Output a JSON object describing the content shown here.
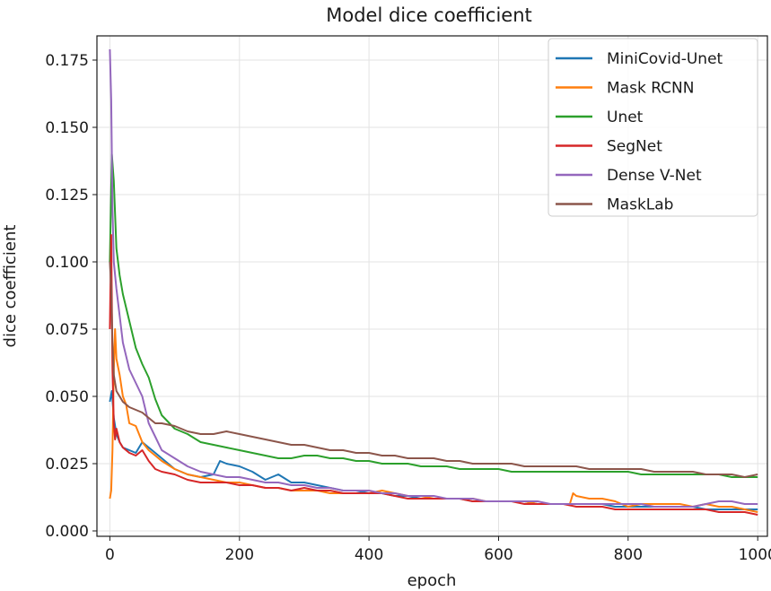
{
  "chart_data": {
    "type": "line",
    "title": "Model dice coefficient",
    "xlabel": "epoch",
    "ylabel": "dice coefficient",
    "xlim": [
      -20,
      1015
    ],
    "ylim": [
      -0.002,
      0.184
    ],
    "x_ticks": [
      0,
      200,
      400,
      600,
      800,
      1000
    ],
    "x_tick_labels": [
      "0",
      "200",
      "400",
      "600",
      "800",
      "1000"
    ],
    "y_ticks": [
      0.0,
      0.025,
      0.05,
      0.075,
      0.1,
      0.125,
      0.15,
      0.175
    ],
    "y_tick_labels": [
      "0.000",
      "0.025",
      "0.050",
      "0.075",
      "0.100",
      "0.125",
      "0.150",
      "0.175"
    ],
    "grid": true,
    "legend_position": "top-right",
    "series": [
      {
        "name": "MiniCovid-Unet",
        "color": "#1f77b4",
        "x": [
          0,
          3,
          6,
          10,
          15,
          20,
          30,
          40,
          50,
          60,
          70,
          80,
          100,
          120,
          140,
          160,
          170,
          180,
          200,
          220,
          240,
          260,
          280,
          300,
          320,
          340,
          360,
          380,
          400,
          420,
          440,
          460,
          480,
          500,
          520,
          540,
          560,
          580,
          600,
          620,
          640,
          660,
          680,
          700,
          720,
          740,
          760,
          780,
          800,
          820,
          840,
          860,
          880,
          900,
          920,
          940,
          960,
          980,
          1000
        ],
        "y": [
          0.048,
          0.052,
          0.042,
          0.036,
          0.033,
          0.031,
          0.03,
          0.029,
          0.033,
          0.031,
          0.029,
          0.027,
          0.023,
          0.021,
          0.02,
          0.021,
          0.026,
          0.025,
          0.024,
          0.022,
          0.019,
          0.021,
          0.018,
          0.018,
          0.017,
          0.016,
          0.015,
          0.015,
          0.014,
          0.014,
          0.013,
          0.013,
          0.012,
          0.012,
          0.012,
          0.012,
          0.011,
          0.011,
          0.011,
          0.011,
          0.011,
          0.01,
          0.01,
          0.01,
          0.01,
          0.01,
          0.01,
          0.009,
          0.009,
          0.009,
          0.009,
          0.009,
          0.009,
          0.009,
          0.008,
          0.008,
          0.008,
          0.008,
          0.008
        ]
      },
      {
        "name": "Mask RCNN",
        "color": "#ff7f0e",
        "x": [
          0,
          2,
          4,
          6,
          8,
          10,
          15,
          20,
          25,
          30,
          40,
          50,
          60,
          70,
          80,
          100,
          120,
          140,
          160,
          180,
          200,
          220,
          240,
          260,
          280,
          300,
          320,
          340,
          360,
          380,
          400,
          420,
          440,
          460,
          480,
          500,
          520,
          540,
          560,
          580,
          600,
          620,
          640,
          660,
          680,
          700,
          710,
          715,
          720,
          740,
          760,
          780,
          800,
          820,
          840,
          860,
          880,
          900,
          920,
          940,
          960,
          980,
          1000
        ],
        "y": [
          0.012,
          0.015,
          0.03,
          0.06,
          0.075,
          0.064,
          0.058,
          0.05,
          0.047,
          0.04,
          0.039,
          0.033,
          0.03,
          0.028,
          0.026,
          0.023,
          0.021,
          0.02,
          0.019,
          0.018,
          0.018,
          0.017,
          0.016,
          0.016,
          0.015,
          0.015,
          0.015,
          0.014,
          0.014,
          0.014,
          0.014,
          0.015,
          0.014,
          0.013,
          0.013,
          0.012,
          0.012,
          0.012,
          0.012,
          0.011,
          0.011,
          0.011,
          0.011,
          0.01,
          0.01,
          0.01,
          0.01,
          0.014,
          0.013,
          0.012,
          0.012,
          0.011,
          0.009,
          0.01,
          0.01,
          0.01,
          0.01,
          0.009,
          0.01,
          0.009,
          0.009,
          0.008,
          0.007
        ]
      },
      {
        "name": "Unet",
        "color": "#2ca02c",
        "x": [
          0,
          3,
          6,
          10,
          15,
          20,
          25,
          30,
          40,
          50,
          60,
          70,
          80,
          100,
          120,
          140,
          160,
          180,
          200,
          220,
          240,
          260,
          280,
          300,
          320,
          340,
          360,
          380,
          400,
          420,
          440,
          460,
          480,
          500,
          520,
          540,
          560,
          580,
          600,
          620,
          640,
          660,
          680,
          700,
          720,
          740,
          760,
          780,
          800,
          820,
          840,
          860,
          880,
          900,
          920,
          940,
          960,
          980,
          1000
        ],
        "y": [
          0.1,
          0.14,
          0.13,
          0.105,
          0.095,
          0.088,
          0.083,
          0.078,
          0.068,
          0.062,
          0.057,
          0.049,
          0.043,
          0.038,
          0.036,
          0.033,
          0.032,
          0.031,
          0.03,
          0.029,
          0.028,
          0.027,
          0.027,
          0.028,
          0.028,
          0.027,
          0.027,
          0.026,
          0.026,
          0.025,
          0.025,
          0.025,
          0.024,
          0.024,
          0.024,
          0.023,
          0.023,
          0.023,
          0.023,
          0.022,
          0.022,
          0.022,
          0.022,
          0.022,
          0.022,
          0.022,
          0.022,
          0.022,
          0.022,
          0.021,
          0.021,
          0.021,
          0.021,
          0.021,
          0.021,
          0.021,
          0.02,
          0.02,
          0.02
        ]
      },
      {
        "name": "SegNet",
        "color": "#d62728",
        "x": [
          0,
          2,
          4,
          6,
          8,
          10,
          15,
          20,
          30,
          40,
          50,
          60,
          70,
          80,
          100,
          120,
          140,
          160,
          180,
          200,
          220,
          240,
          260,
          280,
          300,
          320,
          340,
          360,
          380,
          400,
          420,
          440,
          460,
          480,
          500,
          520,
          540,
          560,
          580,
          600,
          620,
          640,
          660,
          680,
          700,
          720,
          740,
          760,
          780,
          800,
          820,
          840,
          860,
          880,
          900,
          920,
          940,
          960,
          980,
          1000
        ],
        "y": [
          0.075,
          0.11,
          0.06,
          0.04,
          0.034,
          0.038,
          0.033,
          0.031,
          0.029,
          0.028,
          0.03,
          0.026,
          0.023,
          0.022,
          0.021,
          0.019,
          0.018,
          0.018,
          0.018,
          0.017,
          0.017,
          0.016,
          0.016,
          0.015,
          0.016,
          0.015,
          0.015,
          0.014,
          0.014,
          0.014,
          0.014,
          0.013,
          0.012,
          0.012,
          0.012,
          0.012,
          0.012,
          0.011,
          0.011,
          0.011,
          0.011,
          0.01,
          0.01,
          0.01,
          0.01,
          0.009,
          0.009,
          0.009,
          0.008,
          0.008,
          0.008,
          0.008,
          0.008,
          0.008,
          0.008,
          0.008,
          0.007,
          0.007,
          0.007,
          0.006
        ]
      },
      {
        "name": "Dense V-Net",
        "color": "#9467bd",
        "x": [
          0,
          2,
          4,
          6,
          10,
          15,
          20,
          30,
          40,
          50,
          60,
          70,
          80,
          100,
          120,
          140,
          160,
          180,
          200,
          220,
          240,
          260,
          280,
          300,
          320,
          340,
          360,
          380,
          400,
          420,
          440,
          460,
          480,
          500,
          520,
          540,
          560,
          580,
          600,
          620,
          640,
          660,
          680,
          700,
          720,
          740,
          760,
          780,
          800,
          820,
          840,
          860,
          880,
          900,
          920,
          940,
          960,
          980,
          1000
        ],
        "y": [
          0.179,
          0.16,
          0.12,
          0.1,
          0.09,
          0.08,
          0.07,
          0.06,
          0.055,
          0.05,
          0.04,
          0.035,
          0.03,
          0.027,
          0.024,
          0.022,
          0.021,
          0.02,
          0.02,
          0.019,
          0.018,
          0.018,
          0.017,
          0.017,
          0.016,
          0.016,
          0.015,
          0.015,
          0.015,
          0.014,
          0.014,
          0.013,
          0.013,
          0.013,
          0.012,
          0.012,
          0.012,
          0.011,
          0.011,
          0.011,
          0.011,
          0.011,
          0.01,
          0.01,
          0.01,
          0.01,
          0.01,
          0.01,
          0.01,
          0.01,
          0.009,
          0.009,
          0.009,
          0.009,
          0.01,
          0.011,
          0.011,
          0.01,
          0.01
        ]
      },
      {
        "name": "MaskLab",
        "color": "#8c564b",
        "x": [
          0,
          2,
          4,
          6,
          10,
          15,
          20,
          30,
          40,
          50,
          60,
          70,
          80,
          100,
          120,
          140,
          160,
          180,
          200,
          220,
          240,
          260,
          280,
          300,
          320,
          340,
          360,
          380,
          400,
          420,
          440,
          460,
          480,
          500,
          520,
          540,
          560,
          580,
          600,
          620,
          640,
          660,
          680,
          700,
          720,
          740,
          760,
          780,
          800,
          820,
          840,
          860,
          880,
          900,
          920,
          940,
          960,
          980,
          1000
        ],
        "y": [
          0.1,
          0.09,
          0.07,
          0.058,
          0.052,
          0.05,
          0.048,
          0.046,
          0.045,
          0.044,
          0.042,
          0.04,
          0.04,
          0.039,
          0.037,
          0.036,
          0.036,
          0.037,
          0.036,
          0.035,
          0.034,
          0.033,
          0.032,
          0.032,
          0.031,
          0.03,
          0.03,
          0.029,
          0.029,
          0.028,
          0.028,
          0.027,
          0.027,
          0.027,
          0.026,
          0.026,
          0.025,
          0.025,
          0.025,
          0.025,
          0.024,
          0.024,
          0.024,
          0.024,
          0.024,
          0.023,
          0.023,
          0.023,
          0.023,
          0.023,
          0.022,
          0.022,
          0.022,
          0.022,
          0.021,
          0.021,
          0.021,
          0.02,
          0.021
        ]
      }
    ]
  }
}
